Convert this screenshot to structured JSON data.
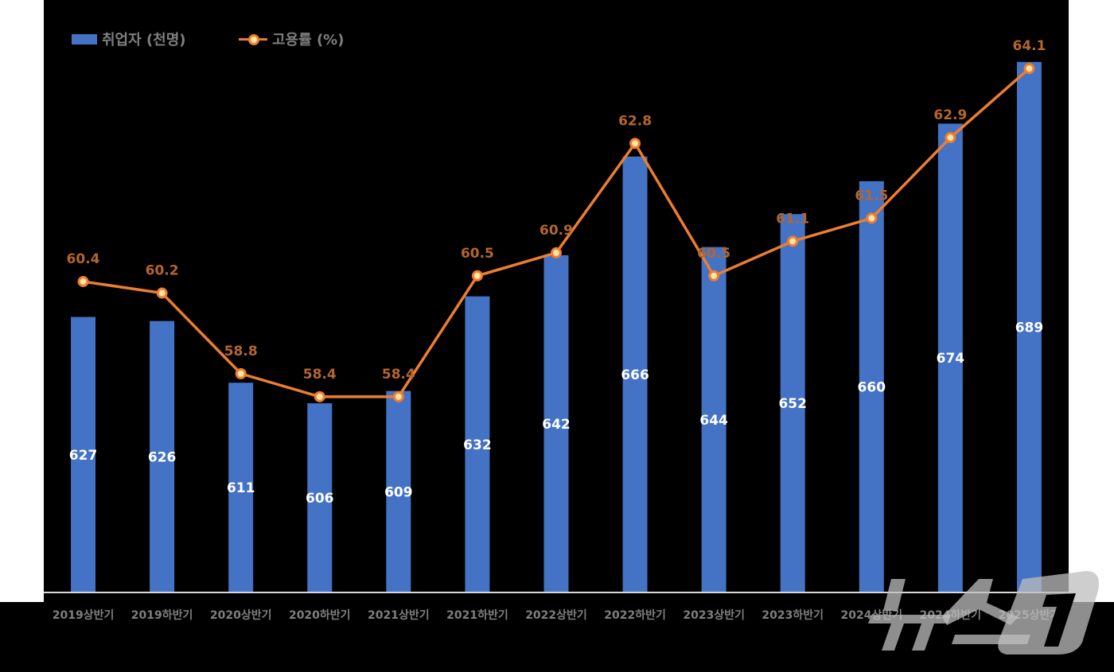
{
  "chart_data": {
    "type": "bar+line",
    "categories": [
      "2019상반기",
      "2019하반기",
      "2020상반기",
      "2020하반기",
      "2021상반기",
      "2021하반기",
      "2022상반기",
      "2022하반기",
      "2023상반기",
      "2023하반기",
      "2024상반기",
      "2024하반기",
      "2025상반기"
    ],
    "series": [
      {
        "name": "취업자 (천명)",
        "type": "bar",
        "axis": "primary",
        "color": "#4472C4",
        "values": [
          627,
          626,
          611,
          606,
          609,
          632,
          642,
          666,
          644,
          652,
          660,
          674,
          689
        ]
      },
      {
        "name": "고용률 (%)",
        "type": "line",
        "axis": "secondary",
        "color": "#ED7D31",
        "values": [
          60.4,
          60.2,
          58.8,
          58.4,
          58.4,
          60.5,
          60.9,
          62.8,
          60.5,
          61.1,
          61.5,
          62.9,
          64.1
        ]
      }
    ],
    "primary_ylim": [
      560,
      700
    ],
    "secondary_ylim": [
      55,
      65
    ],
    "grid": false,
    "legend": "top-left",
    "label_color_line": "#B5652F",
    "label_color_bar": "#FFFFFF",
    "tick_color": "#7F7F7F"
  },
  "legend": {
    "bar_label": "취업자 (천명)",
    "line_label": "고용률 (%)"
  },
  "watermark": "뉴스1"
}
